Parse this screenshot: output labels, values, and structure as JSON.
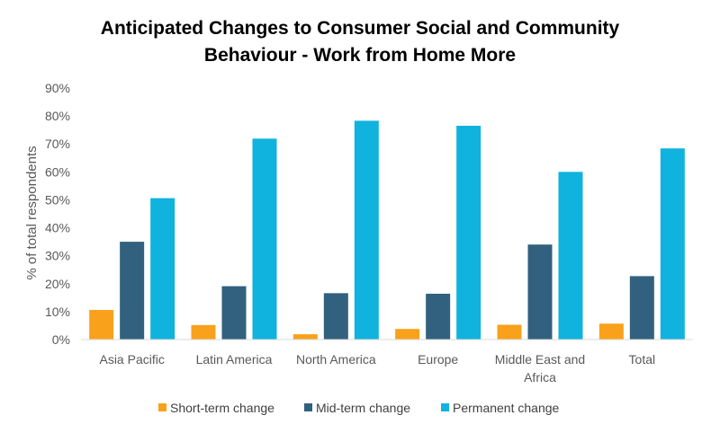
{
  "chart_data": {
    "type": "bar",
    "title": [
      "Anticipated Changes to Consumer Social and Community",
      "Behaviour - Work from Home More"
    ],
    "xlabel": "",
    "ylabel": "% of total respondents",
    "ylim": [
      0,
      90
    ],
    "yticks": [
      "0%",
      "10%",
      "20%",
      "30%",
      "40%",
      "50%",
      "60%",
      "70%",
      "80%",
      "90%"
    ],
    "categories": [
      [
        "Asia Pacific"
      ],
      [
        "Latin America"
      ],
      [
        "North America"
      ],
      [
        "Europe"
      ],
      [
        "Middle East and",
        "Africa"
      ],
      [
        "Total"
      ]
    ],
    "grid": false,
    "legend_position": "bottom",
    "series": [
      {
        "name": "Short-term change",
        "color": "#F9A11B",
        "values": [
          10.6,
          5.2,
          1.9,
          3.8,
          5.3,
          5.7
        ]
      },
      {
        "name": "Mid-term change",
        "color": "#31617E",
        "values": [
          35.0,
          19.1,
          16.6,
          16.4,
          34.0,
          22.7
        ]
      },
      {
        "name": "Permanent change",
        "color": "#0FB3DE",
        "values": [
          50.6,
          71.9,
          78.3,
          76.5,
          60.0,
          68.4
        ]
      }
    ]
  }
}
